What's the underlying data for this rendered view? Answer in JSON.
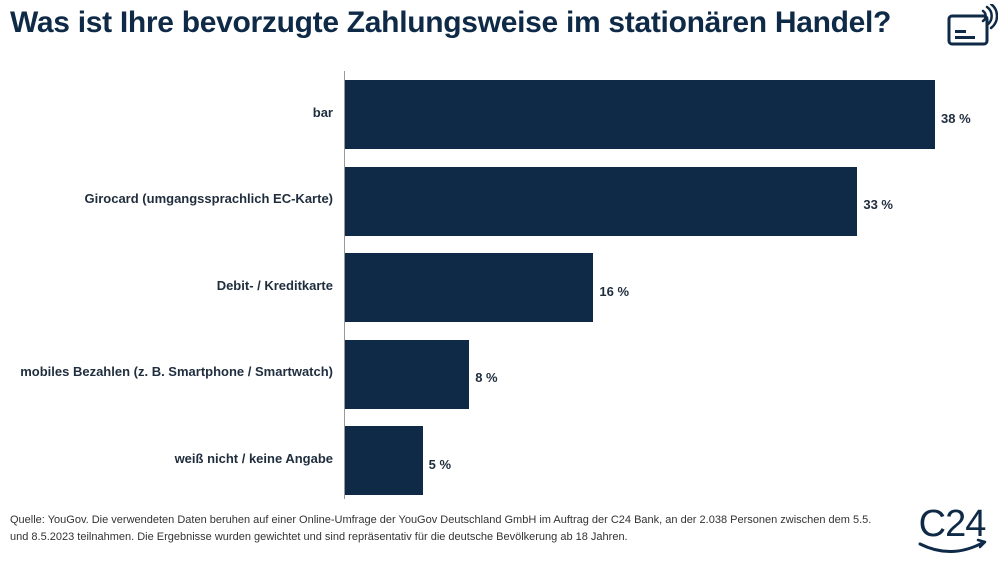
{
  "header": {
    "title": "Was ist Ihre bevorzugte Zahlungsweise im stationären Handel?",
    "icon": "contactless-card-icon"
  },
  "chart_data": {
    "type": "bar",
    "orientation": "horizontal",
    "title": "Was ist Ihre bevorzugte Zahlungsweise im stationären Handel?",
    "categories": [
      "bar",
      "Girocard (umgangssprachlich EC-Karte)",
      "Debit- / Kreditkarte",
      "mobiles Bezahlen (z. B. Smartphone / Smartwatch)",
      "weiß nicht / keine Angabe"
    ],
    "values": [
      38,
      33,
      16,
      8,
      5
    ],
    "value_labels": [
      "38 %",
      "33 %",
      "16 %",
      "8 %",
      "5 %"
    ],
    "unit": "%",
    "xlim": [
      0,
      38
    ],
    "grid": false,
    "bar_color": "#0e2a47"
  },
  "footer": {
    "source_line1": "Quelle: YouGov. Die verwendeten Daten beruhen auf einer Online-Umfrage der YouGov Deutschland GmbH im Auftrag der C24 Bank, an der 2.038 Personen zwischen dem 5.5.",
    "source_line2": "und 8.5.2023 teilnahmen. Die Ergebnisse wurden gewichtet und sind repräsentativ für die deutsche Bevölkerung ab 18 Jahren.",
    "brand": "C24"
  },
  "colors": {
    "primary": "#0e2a47",
    "text": "#1f2d3d",
    "axis": "#999999"
  }
}
